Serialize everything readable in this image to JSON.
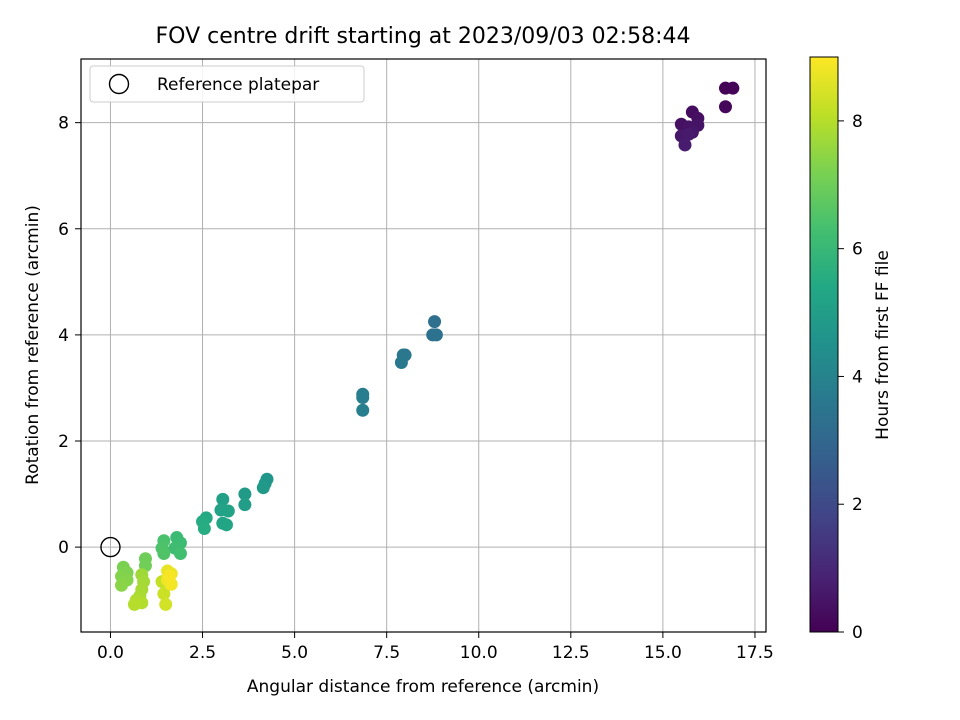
{
  "chart_data": {
    "type": "scatter",
    "title": "FOV centre drift starting at 2023/09/03 02:58:44",
    "xlabel": "Angular distance from reference (arcmin)",
    "ylabel": "Rotation from reference (arcmin)",
    "xlim": [
      -0.8,
      17.8
    ],
    "ylim": [
      -1.6,
      9.2
    ],
    "x_ticks": [
      0.0,
      2.5,
      5.0,
      7.5,
      10.0,
      12.5,
      15.0,
      17.5
    ],
    "x_tick_labels": [
      "0.0",
      "2.5",
      "5.0",
      "7.5",
      "10.0",
      "12.5",
      "15.0",
      "17.5"
    ],
    "y_ticks": [
      0,
      2,
      4,
      6,
      8
    ],
    "y_tick_labels": [
      "0",
      "2",
      "4",
      "6",
      "8"
    ],
    "grid": true,
    "legend": {
      "position": "top-left",
      "entries": [
        "Reference platepar"
      ]
    },
    "reference_point": {
      "x": 0.0,
      "y": 0.0,
      "label": "Reference platepar",
      "marker": "open-circle"
    },
    "colorbar": {
      "label": "Hours from first FF file",
      "colormap": "viridis",
      "range": [
        0,
        9
      ],
      "ticks": [
        0,
        2,
        4,
        6,
        8
      ],
      "tick_labels": [
        "0",
        "2",
        "4",
        "6",
        "8"
      ]
    },
    "points": [
      {
        "x": 16.7,
        "y": 8.65,
        "t": 0.05
      },
      {
        "x": 16.9,
        "y": 8.65,
        "t": 0.1
      },
      {
        "x": 16.7,
        "y": 8.3,
        "t": 0.15
      },
      {
        "x": 15.8,
        "y": 8.2,
        "t": 0.3
      },
      {
        "x": 15.95,
        "y": 8.08,
        "t": 0.35
      },
      {
        "x": 15.5,
        "y": 7.97,
        "t": 0.4
      },
      {
        "x": 15.7,
        "y": 7.92,
        "t": 0.45
      },
      {
        "x": 15.95,
        "y": 7.95,
        "t": 0.5
      },
      {
        "x": 15.8,
        "y": 7.82,
        "t": 0.55
      },
      {
        "x": 15.5,
        "y": 7.75,
        "t": 0.6
      },
      {
        "x": 15.7,
        "y": 7.78,
        "t": 0.65
      },
      {
        "x": 15.6,
        "y": 7.58,
        "t": 0.7
      },
      {
        "x": 8.8,
        "y": 4.25,
        "t": 3.3
      },
      {
        "x": 8.75,
        "y": 4.0,
        "t": 3.35
      },
      {
        "x": 8.85,
        "y": 4.0,
        "t": 3.4
      },
      {
        "x": 7.95,
        "y": 3.62,
        "t": 3.5
      },
      {
        "x": 8.0,
        "y": 3.62,
        "t": 3.55
      },
      {
        "x": 7.9,
        "y": 3.48,
        "t": 3.6
      },
      {
        "x": 6.85,
        "y": 2.88,
        "t": 3.75
      },
      {
        "x": 6.85,
        "y": 2.82,
        "t": 3.8
      },
      {
        "x": 6.85,
        "y": 2.58,
        "t": 3.85
      },
      {
        "x": 4.25,
        "y": 1.28,
        "t": 4.7
      },
      {
        "x": 4.2,
        "y": 1.2,
        "t": 4.75
      },
      {
        "x": 4.15,
        "y": 1.12,
        "t": 4.8
      },
      {
        "x": 3.65,
        "y": 1.0,
        "t": 4.9
      },
      {
        "x": 3.65,
        "y": 0.8,
        "t": 4.95
      },
      {
        "x": 3.05,
        "y": 0.9,
        "t": 5.1
      },
      {
        "x": 3.0,
        "y": 0.7,
        "t": 5.15
      },
      {
        "x": 3.2,
        "y": 0.68,
        "t": 5.2
      },
      {
        "x": 3.05,
        "y": 0.45,
        "t": 5.25
      },
      {
        "x": 3.15,
        "y": 0.42,
        "t": 5.3
      },
      {
        "x": 2.6,
        "y": 0.55,
        "t": 5.45
      },
      {
        "x": 2.5,
        "y": 0.48,
        "t": 5.5
      },
      {
        "x": 2.55,
        "y": 0.35,
        "t": 5.55
      },
      {
        "x": 1.8,
        "y": 0.18,
        "t": 6.1
      },
      {
        "x": 1.9,
        "y": 0.08,
        "t": 6.15
      },
      {
        "x": 1.75,
        "y": -0.02,
        "t": 6.2
      },
      {
        "x": 1.9,
        "y": -0.12,
        "t": 6.25
      },
      {
        "x": 1.45,
        "y": 0.12,
        "t": 6.4
      },
      {
        "x": 1.4,
        "y": -0.02,
        "t": 6.45
      },
      {
        "x": 1.45,
        "y": -0.12,
        "t": 6.5
      },
      {
        "x": 0.95,
        "y": -0.22,
        "t": 7.0
      },
      {
        "x": 0.95,
        "y": -0.35,
        "t": 7.05
      },
      {
        "x": 0.35,
        "y": -0.38,
        "t": 7.2
      },
      {
        "x": 0.45,
        "y": -0.48,
        "t": 7.25
      },
      {
        "x": 0.3,
        "y": -0.55,
        "t": 7.3
      },
      {
        "x": 0.45,
        "y": -0.62,
        "t": 7.35
      },
      {
        "x": 0.3,
        "y": -0.72,
        "t": 7.4
      },
      {
        "x": 0.85,
        "y": -0.52,
        "t": 7.7
      },
      {
        "x": 0.9,
        "y": -0.65,
        "t": 7.75
      },
      {
        "x": 0.85,
        "y": -0.8,
        "t": 7.8
      },
      {
        "x": 0.8,
        "y": -0.92,
        "t": 7.85
      },
      {
        "x": 0.7,
        "y": -1.0,
        "t": 7.9
      },
      {
        "x": 0.85,
        "y": -1.05,
        "t": 7.95
      },
      {
        "x": 0.65,
        "y": -1.08,
        "t": 8.0
      },
      {
        "x": 1.4,
        "y": -0.65,
        "t": 8.2
      },
      {
        "x": 1.45,
        "y": -0.88,
        "t": 8.3
      },
      {
        "x": 1.5,
        "y": -1.08,
        "t": 8.4
      },
      {
        "x": 1.55,
        "y": -0.45,
        "t": 8.7
      },
      {
        "x": 1.65,
        "y": -0.5,
        "t": 8.75
      },
      {
        "x": 1.55,
        "y": -0.62,
        "t": 8.8
      },
      {
        "x": 1.65,
        "y": -0.7,
        "t": 8.85
      },
      {
        "x": 1.6,
        "y": -0.55,
        "t": 8.9
      }
    ]
  }
}
